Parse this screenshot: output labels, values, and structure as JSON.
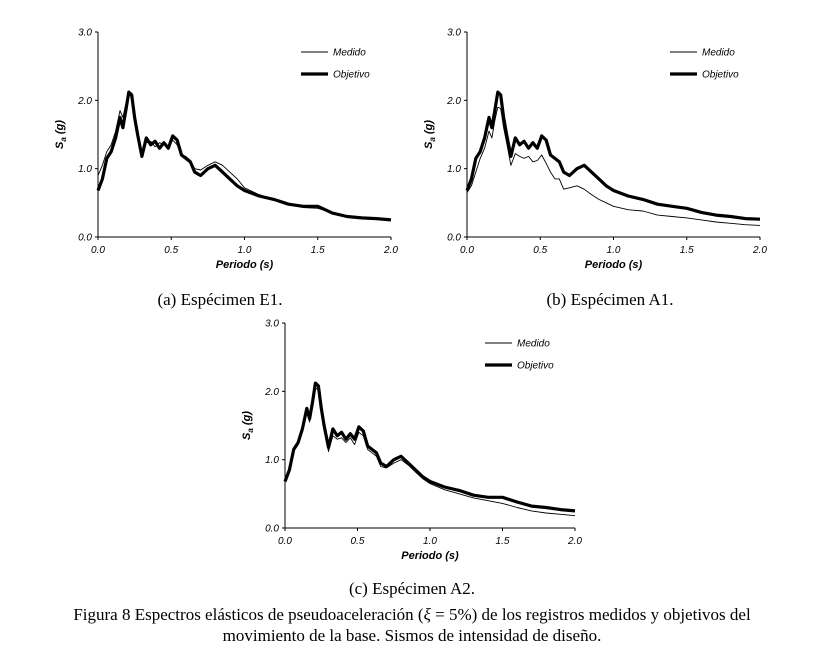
{
  "chart_data": [
    {
      "type": "line",
      "caption": "(a) Espécimen E1.",
      "xlabel": "Periodo (s)",
      "ylabel_main": "S",
      "ylabel_sub": "a",
      "ylabel_unit": "(g)",
      "xlim": [
        0,
        2
      ],
      "ylim": [
        0,
        3
      ],
      "xticks": [
        "0.0",
        "0.5",
        "1.0",
        "1.5",
        "2.0"
      ],
      "yticks": [
        "0.0",
        "1.0",
        "2.0",
        "3.0"
      ],
      "legend_position": "top-right",
      "series": [
        {
          "name": "Medido",
          "style": "thin",
          "x": [
            0,
            0.03,
            0.06,
            0.09,
            0.12,
            0.15,
            0.17,
            0.19,
            0.21,
            0.23,
            0.25,
            0.27,
            0.3,
            0.33,
            0.36,
            0.39,
            0.42,
            0.45,
            0.48,
            0.51,
            0.54,
            0.57,
            0.6,
            0.63,
            0.66,
            0.7,
            0.75,
            0.8,
            0.85,
            0.9,
            0.95,
            1.0,
            1.1,
            1.2,
            1.3,
            1.4,
            1.5,
            1.6,
            1.7,
            1.8,
            1.9,
            2.0
          ],
          "y": [
            0.9,
            1.05,
            1.25,
            1.35,
            1.55,
            1.85,
            1.75,
            1.95,
            2.08,
            2.05,
            1.8,
            1.55,
            1.22,
            1.38,
            1.4,
            1.32,
            1.38,
            1.35,
            1.3,
            1.42,
            1.35,
            1.2,
            1.18,
            1.12,
            1.0,
            0.98,
            1.05,
            1.1,
            1.05,
            0.95,
            0.85,
            0.72,
            0.62,
            0.55,
            0.48,
            0.43,
            0.42,
            0.35,
            0.3,
            0.28,
            0.26,
            0.25
          ]
        },
        {
          "name": "Objetivo",
          "style": "thick",
          "x": [
            0,
            0.03,
            0.06,
            0.09,
            0.12,
            0.15,
            0.17,
            0.19,
            0.21,
            0.23,
            0.25,
            0.27,
            0.3,
            0.33,
            0.36,
            0.39,
            0.42,
            0.45,
            0.48,
            0.51,
            0.54,
            0.57,
            0.6,
            0.63,
            0.66,
            0.7,
            0.75,
            0.8,
            0.85,
            0.9,
            0.95,
            1.0,
            1.1,
            1.2,
            1.3,
            1.4,
            1.5,
            1.6,
            1.7,
            1.8,
            1.9,
            2.0
          ],
          "y": [
            0.68,
            0.85,
            1.15,
            1.25,
            1.45,
            1.75,
            1.6,
            1.85,
            2.12,
            2.08,
            1.75,
            1.5,
            1.18,
            1.45,
            1.35,
            1.4,
            1.3,
            1.38,
            1.3,
            1.48,
            1.42,
            1.2,
            1.15,
            1.1,
            0.95,
            0.9,
            1.0,
            1.05,
            0.95,
            0.85,
            0.75,
            0.68,
            0.6,
            0.55,
            0.48,
            0.45,
            0.45,
            0.35,
            0.3,
            0.28,
            0.27,
            0.25
          ]
        }
      ]
    },
    {
      "type": "line",
      "caption": "(b) Espécimen A1.",
      "xlabel": "Periodo (s)",
      "ylabel_main": "S",
      "ylabel_sub": "a",
      "ylabel_unit": "(g)",
      "xlim": [
        0,
        2
      ],
      "ylim": [
        0,
        3
      ],
      "xticks": [
        "0.0",
        "0.5",
        "1.0",
        "1.5",
        "2.0"
      ],
      "yticks": [
        "0.0",
        "1.0",
        "2.0",
        "3.0"
      ],
      "legend_position": "top-right",
      "series": [
        {
          "name": "Medido",
          "style": "thin",
          "x": [
            0,
            0.03,
            0.06,
            0.09,
            0.12,
            0.15,
            0.17,
            0.19,
            0.21,
            0.23,
            0.25,
            0.27,
            0.3,
            0.33,
            0.36,
            0.39,
            0.42,
            0.45,
            0.48,
            0.51,
            0.54,
            0.57,
            0.6,
            0.63,
            0.66,
            0.7,
            0.75,
            0.8,
            0.85,
            0.9,
            0.95,
            1.0,
            1.1,
            1.2,
            1.3,
            1.4,
            1.5,
            1.6,
            1.7,
            1.8,
            1.9,
            2.0
          ],
          "y": [
            0.65,
            0.75,
            0.95,
            1.15,
            1.3,
            1.55,
            1.45,
            1.7,
            1.9,
            1.88,
            1.6,
            1.38,
            1.05,
            1.22,
            1.18,
            1.15,
            1.18,
            1.1,
            1.12,
            1.2,
            1.08,
            0.95,
            0.85,
            0.85,
            0.7,
            0.72,
            0.75,
            0.7,
            0.62,
            0.55,
            0.5,
            0.45,
            0.4,
            0.38,
            0.32,
            0.3,
            0.28,
            0.25,
            0.22,
            0.2,
            0.18,
            0.17
          ]
        },
        {
          "name": "Objetivo",
          "style": "thick",
          "x": [
            0,
            0.03,
            0.06,
            0.09,
            0.12,
            0.15,
            0.17,
            0.19,
            0.21,
            0.23,
            0.25,
            0.27,
            0.3,
            0.33,
            0.36,
            0.39,
            0.42,
            0.45,
            0.48,
            0.51,
            0.54,
            0.57,
            0.6,
            0.63,
            0.66,
            0.7,
            0.75,
            0.8,
            0.85,
            0.9,
            0.95,
            1.0,
            1.1,
            1.2,
            1.3,
            1.4,
            1.5,
            1.6,
            1.7,
            1.8,
            1.9,
            2.0
          ],
          "y": [
            0.68,
            0.85,
            1.15,
            1.25,
            1.45,
            1.75,
            1.6,
            1.85,
            2.12,
            2.08,
            1.75,
            1.5,
            1.18,
            1.45,
            1.35,
            1.4,
            1.3,
            1.38,
            1.3,
            1.48,
            1.42,
            1.2,
            1.15,
            1.1,
            0.95,
            0.9,
            1.0,
            1.05,
            0.95,
            0.85,
            0.75,
            0.68,
            0.6,
            0.55,
            0.48,
            0.45,
            0.42,
            0.36,
            0.32,
            0.3,
            0.27,
            0.26
          ]
        }
      ]
    },
    {
      "type": "line",
      "caption": "(c) Espécimen A2.",
      "xlabel": "Periodo (s)",
      "ylabel_main": "S",
      "ylabel_sub": "a",
      "ylabel_unit": "(g)",
      "xlim": [
        0,
        2
      ],
      "ylim": [
        0,
        3
      ],
      "xticks": [
        "0.0",
        "0.5",
        "1.0",
        "1.5",
        "2.0"
      ],
      "yticks": [
        "0.0",
        "1.0",
        "2.0",
        "3.0"
      ],
      "legend_position": "top-right",
      "series": [
        {
          "name": "Medido",
          "style": "thin",
          "x": [
            0,
            0.03,
            0.06,
            0.09,
            0.12,
            0.15,
            0.17,
            0.19,
            0.21,
            0.23,
            0.25,
            0.27,
            0.3,
            0.33,
            0.36,
            0.39,
            0.42,
            0.45,
            0.48,
            0.51,
            0.54,
            0.57,
            0.6,
            0.63,
            0.66,
            0.7,
            0.75,
            0.8,
            0.85,
            0.9,
            0.95,
            1.0,
            1.1,
            1.2,
            1.3,
            1.4,
            1.5,
            1.6,
            1.7,
            1.8,
            1.9,
            2.0
          ],
          "y": [
            0.68,
            0.85,
            1.12,
            1.22,
            1.4,
            1.7,
            1.55,
            1.8,
            2.05,
            2.02,
            1.7,
            1.45,
            1.12,
            1.35,
            1.3,
            1.32,
            1.25,
            1.32,
            1.22,
            1.4,
            1.35,
            1.15,
            1.1,
            1.05,
            0.9,
            0.88,
            0.95,
            1.0,
            0.92,
            0.82,
            0.72,
            0.65,
            0.56,
            0.5,
            0.44,
            0.4,
            0.36,
            0.3,
            0.25,
            0.22,
            0.2,
            0.18
          ]
        },
        {
          "name": "Objetivo",
          "style": "thick",
          "x": [
            0,
            0.03,
            0.06,
            0.09,
            0.12,
            0.15,
            0.17,
            0.19,
            0.21,
            0.23,
            0.25,
            0.27,
            0.3,
            0.33,
            0.36,
            0.39,
            0.42,
            0.45,
            0.48,
            0.51,
            0.54,
            0.57,
            0.6,
            0.63,
            0.66,
            0.7,
            0.75,
            0.8,
            0.85,
            0.9,
            0.95,
            1.0,
            1.1,
            1.2,
            1.3,
            1.4,
            1.5,
            1.6,
            1.7,
            1.8,
            1.9,
            2.0
          ],
          "y": [
            0.68,
            0.85,
            1.15,
            1.25,
            1.45,
            1.75,
            1.6,
            1.85,
            2.12,
            2.08,
            1.75,
            1.5,
            1.18,
            1.45,
            1.35,
            1.4,
            1.3,
            1.38,
            1.3,
            1.48,
            1.42,
            1.2,
            1.15,
            1.1,
            0.95,
            0.9,
            1.0,
            1.05,
            0.95,
            0.85,
            0.75,
            0.68,
            0.6,
            0.55,
            0.48,
            0.45,
            0.45,
            0.38,
            0.32,
            0.3,
            0.27,
            0.25
          ]
        }
      ]
    }
  ],
  "figure_caption": {
    "line1_prefix": "Figura 8 Espectros elásticos de pseudoaceleración (",
    "xi": "ξ",
    "line1_suffix": " = 5%) de los registros medidos y objetivos del",
    "line2": "movimiento de la base. Sismos de intensidad de diseño."
  }
}
